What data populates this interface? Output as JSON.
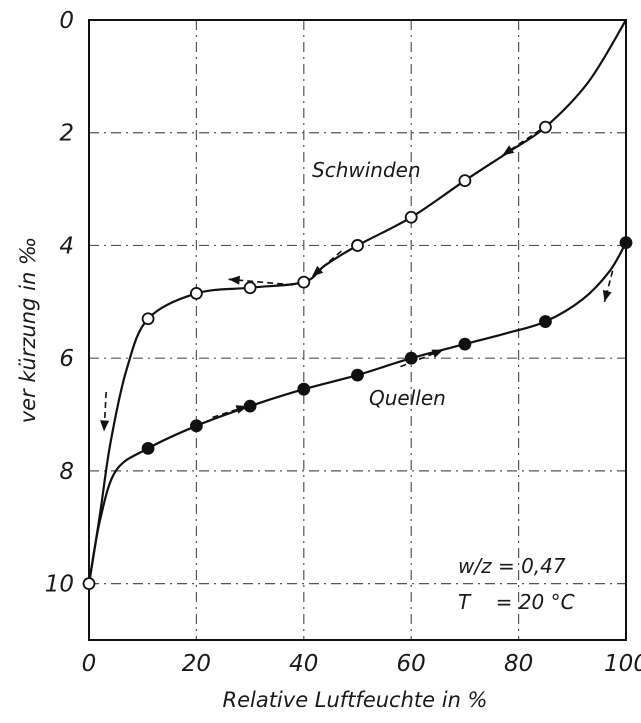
{
  "chart_data": {
    "type": "line",
    "title": "",
    "xlabel": "Relative Luftfeuchte in %",
    "ylabel": "ver kürzung in ‰",
    "xlim": [
      0,
      100
    ],
    "ylim": [
      0,
      11
    ],
    "y_inverted": true,
    "x_ticks": [
      "0",
      "20",
      "40",
      "60",
      "80",
      "100"
    ],
    "y_ticks": [
      "0",
      "2",
      "4",
      "6",
      "8",
      "10"
    ],
    "x_tick_values": [
      0,
      20,
      40,
      60,
      80,
      100
    ],
    "y_tick_values": [
      0,
      2,
      4,
      6,
      8,
      10
    ],
    "grid": true,
    "series": [
      {
        "name": "Schwinden",
        "marker": "open-circle",
        "x": [
          0,
          11,
          20,
          30,
          40,
          50,
          60,
          70,
          85
        ],
        "y": [
          10.0,
          5.3,
          4.85,
          4.75,
          4.65,
          4.0,
          3.5,
          2.85,
          1.9
        ],
        "curve_x": [
          100,
          93,
          85,
          78,
          70,
          60,
          50,
          44,
          40,
          30,
          20,
          11,
          7,
          4,
          2,
          0
        ],
        "curve_y": [
          0.0,
          1.1,
          1.9,
          2.35,
          2.85,
          3.5,
          4.0,
          4.35,
          4.65,
          4.75,
          4.85,
          5.3,
          6.2,
          7.5,
          8.8,
          10.0
        ]
      },
      {
        "name": "Quellen",
        "marker": "filled-circle",
        "x": [
          11,
          20,
          30,
          40,
          50,
          60,
          70,
          85,
          100
        ],
        "y": [
          7.6,
          7.2,
          6.85,
          6.55,
          6.3,
          6.0,
          5.75,
          5.35,
          3.95
        ],
        "curve_x": [
          0,
          2,
          5,
          11,
          20,
          30,
          40,
          50,
          60,
          70,
          78,
          85,
          92,
          97,
          100
        ],
        "curve_y": [
          10.0,
          8.9,
          8.0,
          7.6,
          7.2,
          6.85,
          6.55,
          6.3,
          6.0,
          5.75,
          5.55,
          5.35,
          4.95,
          4.45,
          3.95
        ]
      }
    ],
    "direction_arrows": [
      {
        "series": "Schwinden",
        "x": 84,
        "y": 1.95,
        "toward_x": 77,
        "toward_y": 2.4
      },
      {
        "series": "Schwinden",
        "x": 38,
        "y": 4.7,
        "toward_x": 26,
        "toward_y": 4.6
      },
      {
        "series": "Schwinden",
        "x": 47,
        "y": 4.1,
        "toward_x": 41.5,
        "toward_y": 4.55
      },
      {
        "series": "Schwinden",
        "x": 3.2,
        "y": 6.6,
        "toward_x": 2.8,
        "toward_y": 7.3
      },
      {
        "series": "Quellen",
        "x": 23,
        "y": 7.05,
        "toward_x": 29.5,
        "toward_y": 6.85
      },
      {
        "series": "Quellen",
        "x": 58,
        "y": 6.15,
        "toward_x": 66,
        "toward_y": 5.85
      },
      {
        "series": "Quellen",
        "x": 97.5,
        "y": 4.45,
        "toward_x": 96,
        "toward_y": 5.0
      }
    ],
    "annotations": {
      "schwinden_label": "Schwinden",
      "quellen_label": "Quellen",
      "wz_label": "w/z = 0,47",
      "t_label": "T    = 20 °C"
    }
  }
}
